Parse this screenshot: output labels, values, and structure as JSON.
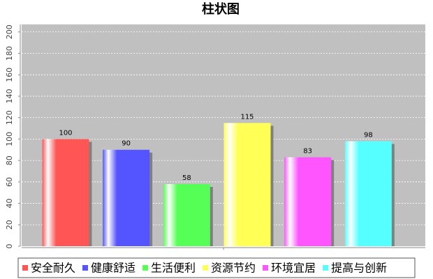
{
  "chart_data": {
    "type": "bar",
    "title": "柱状图",
    "categories": [
      null
    ],
    "series": [
      {
        "name": "安全耐久",
        "color": "#ff5555",
        "values": [
          100
        ]
      },
      {
        "name": "健康舒适",
        "color": "#5555ff",
        "values": [
          90
        ]
      },
      {
        "name": "生活便利",
        "color": "#55ff55",
        "values": [
          58
        ]
      },
      {
        "name": "资源节约",
        "color": "#ffff55",
        "values": [
          115
        ]
      },
      {
        "name": "环境宜居",
        "color": "#ff55ff",
        "values": [
          83
        ]
      },
      {
        "name": "提高与创新",
        "color": "#55ffff",
        "values": [
          98
        ]
      }
    ],
    "ylim": [
      0,
      207
    ],
    "yticks": [
      0,
      20,
      40,
      60,
      80,
      100,
      120,
      140,
      160,
      180,
      200
    ],
    "grid": true,
    "legend": "bottom"
  }
}
